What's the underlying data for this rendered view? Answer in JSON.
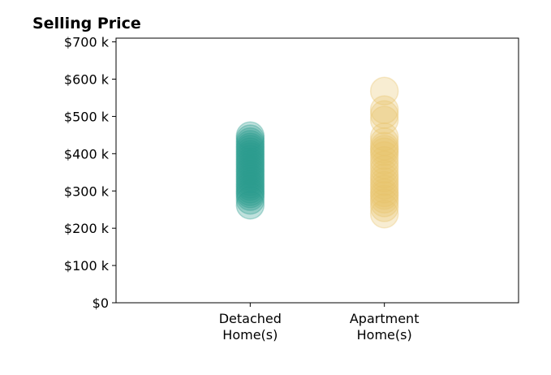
{
  "chart_data": {
    "type": "scatter",
    "title": "Selling Price",
    "xlabel": "",
    "ylabel": "",
    "categories": [
      [
        "Detached",
        "Home(s)"
      ],
      [
        "Apartment",
        "Home(s)"
      ]
    ],
    "y_tick_labels": [
      "$0",
      "$100 k",
      "$200 k",
      "$300 k",
      "$400 k",
      "$500 k",
      "$600 k",
      "$700 k"
    ],
    "y_tick_values": [
      0,
      100000,
      200000,
      300000,
      400000,
      500000,
      600000,
      700000
    ],
    "ylim": [
      0,
      710000
    ],
    "xlim": [
      -1,
      2
    ],
    "grid": false,
    "series": [
      {
        "category_index": 0,
        "color": "#2a9d8f",
        "values": [
          262000,
          275000,
          285000,
          292000,
          298000,
          305000,
          312000,
          318000,
          325000,
          332000,
          338000,
          345000,
          352000,
          358000,
          365000,
          372000,
          378000,
          385000,
          392000,
          398000,
          405000,
          412000,
          418000,
          425000,
          432000,
          440000,
          448000
        ]
      },
      {
        "category_index": 1,
        "color": "#e9c46a",
        "values": [
          238000,
          255000,
          268000,
          278000,
          288000,
          295000,
          305000,
          315000,
          325000,
          335000,
          345000,
          358000,
          370000,
          382000,
          395000,
          405000,
          412000,
          420000,
          432000,
          445000,
          490000,
          505000,
          518000,
          568000
        ]
      }
    ]
  }
}
